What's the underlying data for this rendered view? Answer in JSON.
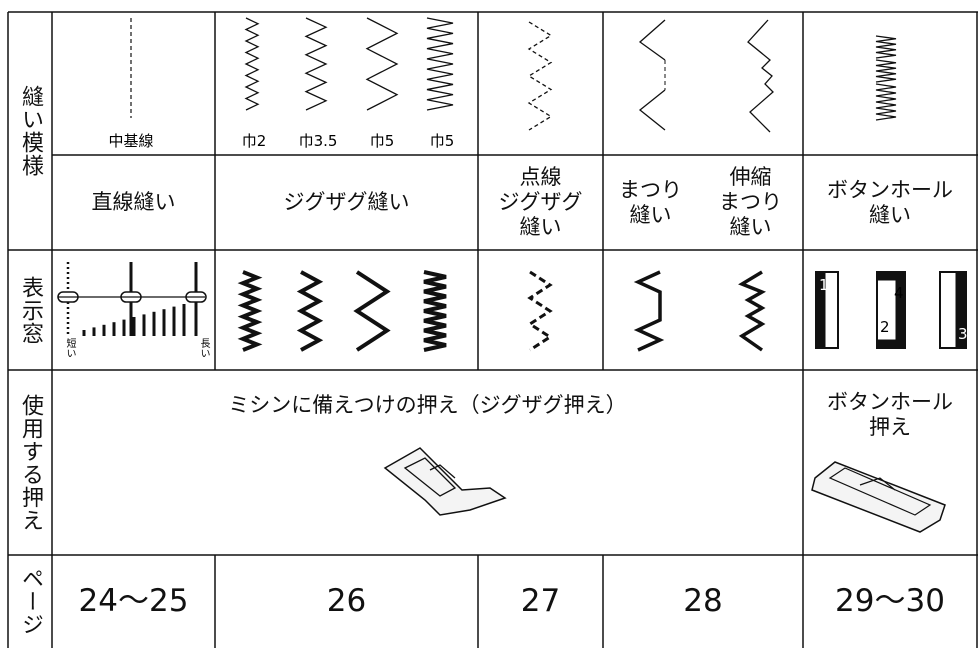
{
  "row_headers": [
    "縫い模様",
    "表示窓",
    "使用する押え",
    "ページ"
  ],
  "pattern_labels": [
    "中基線",
    "巾2",
    "巾3.5",
    "巾5",
    "巾5"
  ],
  "stitch_names": [
    [
      "直線縫い"
    ],
    [
      "ジグザグ縫い"
    ],
    [
      "点線",
      "ジグザグ",
      "縫い"
    ],
    [
      "まつり",
      "縫い"
    ],
    [
      "伸縮",
      "まつり",
      "縫い"
    ],
    [
      "ボタンホール",
      "縫い"
    ]
  ],
  "display_labels": {
    "short": "短い",
    "long": "長い",
    "buttonhole_steps": [
      "1",
      "2",
      "3",
      "4"
    ]
  },
  "presser_feet": [
    "ミシンに備えつけの押え（ジグザグ押え）",
    [
      "ボタンホール",
      "押え"
    ]
  ],
  "pages": [
    "24～25",
    "26",
    "27",
    "28",
    "29～30"
  ]
}
